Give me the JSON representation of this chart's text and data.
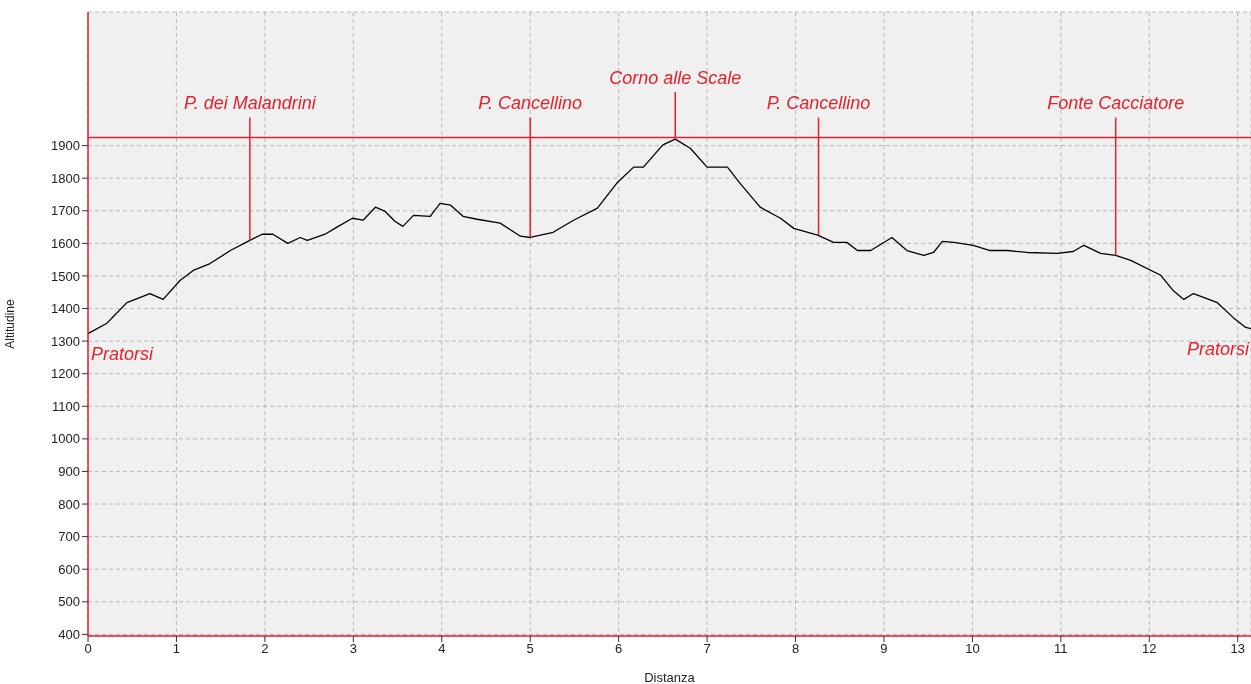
{
  "chart_data": {
    "type": "line",
    "xlabel": "Distanza",
    "ylabel": "Altitudine",
    "x": [
      0,
      0.21,
      0.44,
      0.7,
      0.85,
      1.04,
      1.19,
      1.38,
      1.61,
      1.83,
      1.97,
      2.09,
      2.26,
      2.4,
      2.48,
      2.68,
      2.81,
      2.99,
      3.11,
      3.25,
      3.36,
      3.47,
      3.56,
      3.68,
      3.87,
      3.98,
      4.1,
      4.24,
      4.4,
      4.66,
      4.89,
      5.0,
      5.26,
      5.49,
      5.76,
      5.98,
      6.17,
      6.28,
      6.5,
      6.64,
      6.81,
      7.0,
      7.23,
      7.38,
      7.6,
      7.83,
      7.98,
      8.25,
      8.43,
      8.58,
      8.7,
      8.85,
      9.09,
      9.26,
      9.45,
      9.56,
      9.66,
      9.79,
      10.01,
      10.2,
      10.4,
      10.62,
      10.96,
      11.14,
      11.26,
      11.45,
      11.62,
      11.79,
      12.13,
      12.27,
      12.39,
      12.5,
      12.77,
      12.95,
      13.09,
      13.15
    ],
    "series": [
      {
        "color": "#000000",
        "values": [
          1323,
          1354,
          1418,
          1446,
          1428,
          1486,
          1517,
          1538,
          1578,
          1609,
          1628,
          1628,
          1600,
          1618,
          1609,
          1628,
          1649,
          1677,
          1671,
          1711,
          1698,
          1668,
          1652,
          1686,
          1683,
          1723,
          1717,
          1683,
          1674,
          1662,
          1622,
          1618,
          1634,
          1671,
          1708,
          1785,
          1834,
          1834,
          1902,
          1920,
          1892,
          1834,
          1834,
          1782,
          1711,
          1677,
          1646,
          1625,
          1603,
          1603,
          1578,
          1578,
          1618,
          1578,
          1563,
          1572,
          1606,
          1603,
          1594,
          1578,
          1578,
          1572,
          1569,
          1575,
          1594,
          1569,
          1563,
          1548,
          1502,
          1455,
          1428,
          1446,
          1418,
          1372,
          1342,
          1338
        ]
      }
    ],
    "xlim": [
      0,
      13.15
    ],
    "xticks": [
      0,
      1,
      2,
      3,
      4,
      5,
      6,
      7,
      8,
      9,
      10,
      11,
      12,
      13
    ],
    "ylim": [
      395,
      2310
    ],
    "yticks": [
      400,
      500,
      600,
      700,
      800,
      900,
      1000,
      1100,
      1200,
      1300,
      1400,
      1500,
      1600,
      1700,
      1800,
      1900
    ],
    "grid": true,
    "ref_lines": [
      {
        "axis": "y",
        "value": 1925,
        "color": "#e8202a"
      }
    ],
    "annotations": [
      {
        "text": "Pratorsi",
        "x": 0,
        "y": 1323
      },
      {
        "text": "P. dei Malandrini",
        "x": 1.83,
        "y": 1609
      },
      {
        "text": "P. Cancellino",
        "x": 5.0,
        "y": 1618
      },
      {
        "text": "Corno alle Scale",
        "x": 6.64,
        "y": 1920
      },
      {
        "text": "P. Cancellino",
        "x": 8.26,
        "y": 1625
      },
      {
        "text": "Fonte Cacciatore",
        "x": 11.62,
        "y": 1563
      },
      {
        "text": "Pratorsi",
        "x": 13.15,
        "y": 1338
      }
    ]
  }
}
